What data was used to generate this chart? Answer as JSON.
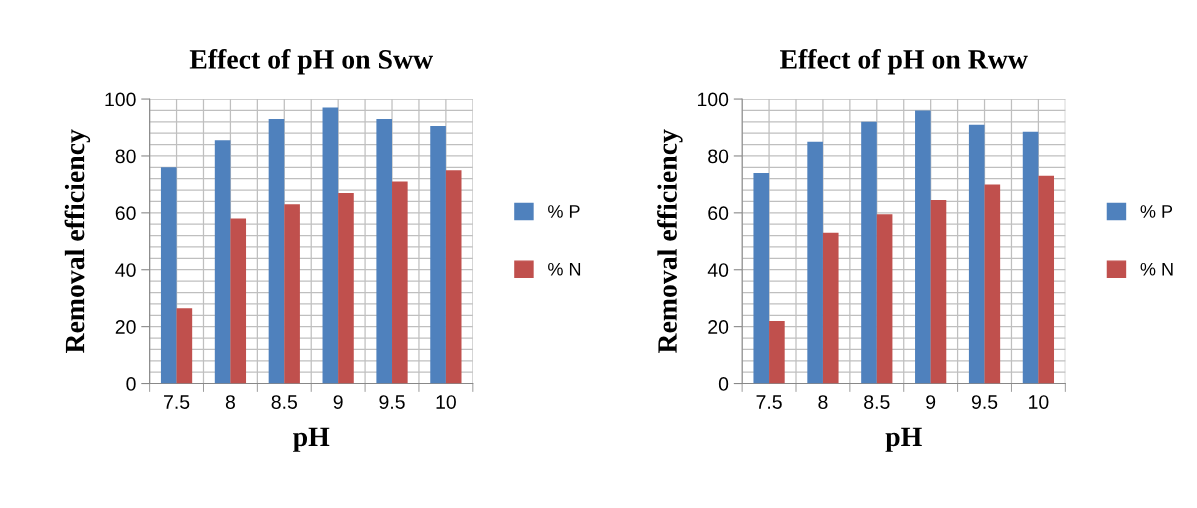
{
  "chart_data": [
    {
      "type": "bar",
      "title": "Effect of pH on Sww",
      "xlabel": "pH",
      "ylabel": "Removal efficiency",
      "categories": [
        "7.5",
        "8",
        "8.5",
        "9",
        "9.5",
        "10"
      ],
      "series": [
        {
          "name": "% P",
          "color": "#4f81bd",
          "values": [
            76,
            85.5,
            93,
            97,
            93,
            90.5
          ]
        },
        {
          "name": "% N",
          "color": "#c0504d",
          "values": [
            26.5,
            58,
            63,
            67,
            71,
            75
          ]
        }
      ],
      "ylim": [
        0,
        100
      ],
      "yticks": [
        0,
        {
          "value": 4,
          "label": null
        },
        {
          "value": 8,
          "label": null
        },
        {
          "value": 12,
          "label": null
        },
        {
          "value": 16,
          "label": null
        },
        20,
        {
          "value": 24,
          "label": null
        },
        {
          "value": 28,
          "label": null
        },
        {
          "value": 32,
          "label": null
        },
        {
          "value": 36,
          "label": null
        },
        40,
        {
          "value": 44,
          "label": null
        },
        {
          "value": 48,
          "label": null
        },
        {
          "value": 52,
          "label": null
        },
        {
          "value": 56,
          "label": null
        },
        60,
        {
          "value": 64,
          "label": null
        },
        {
          "value": 68,
          "label": null
        },
        {
          "value": 72,
          "label": null
        },
        {
          "value": 76,
          "label": null
        },
        80,
        {
          "value": 84,
          "label": null
        },
        {
          "value": 88,
          "label": null
        },
        {
          "value": 92,
          "label": null
        },
        {
          "value": 96,
          "label": null
        },
        100
      ],
      "grid": true,
      "legend": "right"
    },
    {
      "type": "bar",
      "title": "Effect of pH on Rww",
      "xlabel": "pH",
      "ylabel": "Removal efficiency",
      "categories": [
        "7.5",
        "8",
        "8.5",
        "9",
        "9.5",
        "10"
      ],
      "series": [
        {
          "name": "% P",
          "color": "#4f81bd",
          "values": [
            74,
            85,
            92,
            96,
            91,
            88.5
          ]
        },
        {
          "name": "% N",
          "color": "#c0504d",
          "values": [
            22,
            53,
            59.5,
            64.5,
            70,
            73
          ]
        }
      ],
      "ylim": [
        0,
        100
      ],
      "yticks": [
        0,
        {
          "value": 4,
          "label": null
        },
        {
          "value": 8,
          "label": null
        },
        {
          "value": 12,
          "label": null
        },
        {
          "value": 16,
          "label": null
        },
        20,
        {
          "value": 24,
          "label": null
        },
        {
          "value": 28,
          "label": null
        },
        {
          "value": 32,
          "label": null
        },
        {
          "value": 36,
          "label": null
        },
        40,
        {
          "value": 44,
          "label": null
        },
        {
          "value": 48,
          "label": null
        },
        {
          "value": 52,
          "label": null
        },
        {
          "value": 56,
          "label": null
        },
        60,
        {
          "value": 64,
          "label": null
        },
        {
          "value": 68,
          "label": null
        },
        {
          "value": 72,
          "label": null
        },
        {
          "value": 76,
          "label": null
        },
        80,
        {
          "value": 84,
          "label": null
        },
        {
          "value": 88,
          "label": null
        },
        {
          "value": 92,
          "label": null
        },
        {
          "value": 96,
          "label": null
        },
        100
      ],
      "grid": true,
      "legend": "right"
    }
  ]
}
